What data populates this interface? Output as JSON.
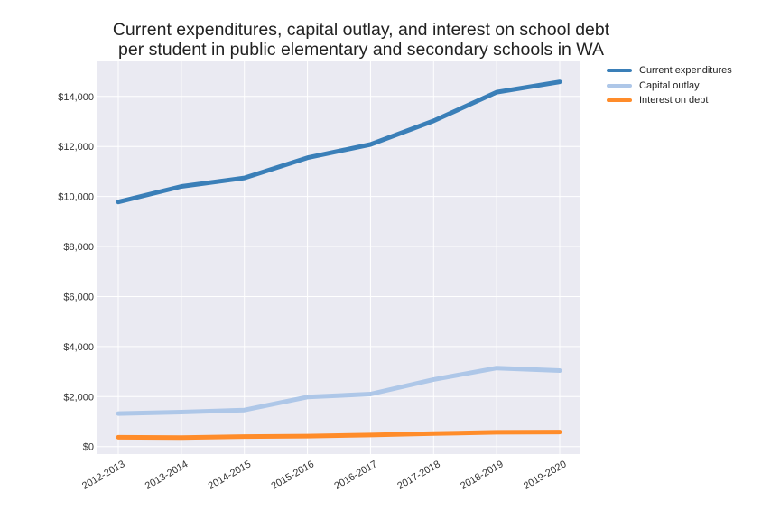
{
  "chart_data": {
    "type": "line",
    "title_line1": "Current expenditures, capital outlay, and interest on school debt",
    "title_line2": "per student in public elementary and secondary schools in WA",
    "categories": [
      "2012-2013",
      "2013-2014",
      "2014-2015",
      "2015-2016",
      "2016-2017",
      "2017-2018",
      "2018-2019",
      "2019-2020"
    ],
    "y_ticks": [
      0,
      2000,
      4000,
      6000,
      8000,
      10000,
      12000,
      14000
    ],
    "y_tick_labels": [
      "$0",
      "$2,000",
      "$4,000",
      "$6,000",
      "$8,000",
      "$10,000",
      "$12,000",
      "$14,000"
    ],
    "ylim": [
      -300,
      15400
    ],
    "grid": true,
    "legend_position": "outside-top-right",
    "series": [
      {
        "name": "Current expenditures",
        "color": "#3a7fb8",
        "values": [
          9780,
          10400,
          10740,
          11550,
          12080,
          13020,
          14170,
          14580
        ]
      },
      {
        "name": "Capital outlay",
        "color": "#aec7e8",
        "values": [
          1320,
          1380,
          1460,
          1980,
          2100,
          2680,
          3140,
          3040
        ]
      },
      {
        "name": "Interest on debt",
        "color": "#ff8c2a",
        "values": [
          370,
          360,
          400,
          420,
          460,
          520,
          570,
          580
        ]
      }
    ]
  }
}
